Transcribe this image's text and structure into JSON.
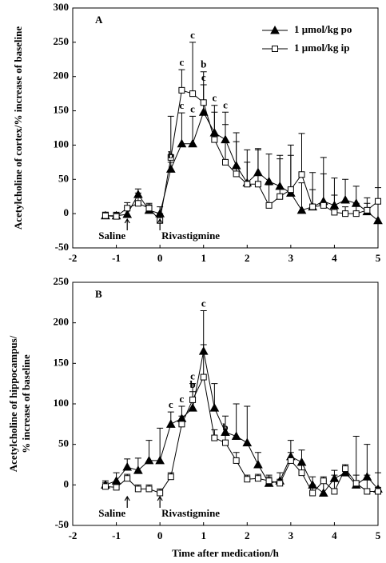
{
  "chart_data": [
    {
      "type": "line",
      "panel": "A",
      "ylabel": "Acetylcholine of cortex/% increase of baseline",
      "x": [
        -1.25,
        -1,
        -0.75,
        -0.5,
        -0.25,
        0,
        0.25,
        0.5,
        0.75,
        1,
        1.25,
        1.5,
        1.75,
        2,
        2.25,
        2.5,
        2.75,
        3,
        3.25,
        3.5,
        3.75,
        4,
        4.25,
        4.5,
        4.75,
        5
      ],
      "series": [
        {
          "name": "1 μmol/kg po",
          "marker": "triangle",
          "color": "#000000",
          "values": [
            -3,
            -3,
            -1,
            28,
            5,
            0,
            65,
            102,
            102,
            148,
            118,
            108,
            70,
            45,
            60,
            47,
            40,
            30,
            5,
            10,
            18,
            12,
            20,
            15,
            3,
            -10
          ],
          "errors": [
            5,
            5,
            10,
            8,
            10,
            10,
            10,
            45,
            40,
            40,
            40,
            40,
            35,
            30,
            35,
            40,
            45,
            55,
            40,
            50,
            40,
            40,
            30,
            25,
            20,
            25
          ]
        },
        {
          "name": "1 μmol/kg ip",
          "marker": "square",
          "color": "#000000",
          "values": [
            -3,
            -4,
            8,
            15,
            8,
            -10,
            82,
            180,
            175,
            162,
            108,
            75,
            58,
            43,
            43,
            12,
            25,
            35,
            57,
            10,
            12,
            2,
            0,
            0,
            5,
            18
          ],
          "errors": [
            5,
            5,
            8,
            15,
            5,
            10,
            60,
            30,
            75,
            45,
            40,
            55,
            60,
            50,
            50,
            30,
            55,
            65,
            60,
            25,
            70,
            25,
            10,
            15,
            10,
            20
          ]
        }
      ],
      "annotations": [
        {
          "text": "b",
          "series": 0,
          "index": 6
        },
        {
          "text": "c",
          "series": 0,
          "index": 7
        },
        {
          "text": "c",
          "series": 1,
          "index": 7
        },
        {
          "text": "c",
          "series": 0,
          "index": 8
        },
        {
          "text": "c",
          "series": 1,
          "index": 8
        },
        {
          "text": "c",
          "series": 0,
          "index": 9
        },
        {
          "text": "b",
          "series": 1,
          "index": 9
        },
        {
          "text": "c",
          "series": 0,
          "index": 10
        },
        {
          "text": "c",
          "series": 0,
          "index": 11
        }
      ],
      "arrows": [
        {
          "label": "Saline",
          "x": -0.75
        },
        {
          "label": "Rivastigmine",
          "x": 0
        }
      ],
      "xlim": [
        -2,
        5
      ],
      "xticks": [
        -2,
        -1,
        0,
        1,
        2,
        3,
        4,
        5
      ],
      "ylim": [
        -50,
        300
      ],
      "yticks": [
        -50,
        0,
        50,
        100,
        150,
        200,
        250,
        300
      ],
      "legend": "upper right"
    },
    {
      "type": "line",
      "panel": "B",
      "ylabel": [
        "Acetylcholine of hippocampus/",
        "% increase of baseline"
      ],
      "xlabel": "Time after medication/h",
      "x": [
        -1.25,
        -1,
        -0.75,
        -0.5,
        -0.25,
        0,
        0.25,
        0.5,
        0.75,
        1,
        1.25,
        1.5,
        1.75,
        2,
        2.25,
        2.5,
        2.75,
        3,
        3.25,
        3.5,
        3.75,
        4,
        4.25,
        4.5,
        4.75,
        5
      ],
      "series": [
        {
          "name": "1 μmol/kg po",
          "marker": "triangle",
          "color": "#000000",
          "values": [
            0,
            5,
            22,
            18,
            30,
            30,
            75,
            82,
            95,
            165,
            95,
            65,
            60,
            52,
            25,
            2,
            5,
            35,
            28,
            0,
            -10,
            8,
            15,
            0,
            10,
            -5
          ],
          "errors": [
            5,
            10,
            10,
            15,
            25,
            40,
            15,
            15,
            30,
            50,
            30,
            20,
            40,
            45,
            15,
            10,
            10,
            20,
            15,
            10,
            15,
            10,
            10,
            60,
            40,
            20
          ]
        },
        {
          "name": "1 μmol/kg ip",
          "marker": "square",
          "color": "#000000",
          "values": [
            -2,
            -3,
            8,
            -5,
            -5,
            -10,
            10,
            75,
            105,
            133,
            58,
            52,
            30,
            7,
            8,
            5,
            2,
            30,
            15,
            -10,
            5,
            -8,
            20,
            2,
            -8,
            -8
          ],
          "errors": [
            5,
            5,
            5,
            5,
            5,
            5,
            5,
            10,
            10,
            40,
            10,
            10,
            10,
            5,
            5,
            5,
            5,
            10,
            10,
            10,
            5,
            20,
            5,
            10,
            20,
            5
          ]
        }
      ],
      "annotations": [
        {
          "text": "c",
          "series": 0,
          "index": 6
        },
        {
          "text": "c",
          "series": 0,
          "index": 7
        },
        {
          "text": "b",
          "series": 1,
          "index": 8
        },
        {
          "text": "c",
          "series": 0,
          "index": 8
        },
        {
          "text": "c",
          "series": 0,
          "index": 9
        },
        {
          "text": "b",
          "series": 1,
          "index": 11
        }
      ],
      "arrows": [
        {
          "label": "Saline",
          "x": -0.75
        },
        {
          "label": "Rivastigmine",
          "x": 0
        }
      ],
      "xlim": [
        -2,
        5
      ],
      "xticks": [
        -2,
        -1,
        0,
        1,
        2,
        3,
        4,
        5
      ],
      "ylim": [
        -50,
        250
      ],
      "yticks": [
        -50,
        0,
        50,
        100,
        150,
        200,
        250
      ]
    }
  ]
}
